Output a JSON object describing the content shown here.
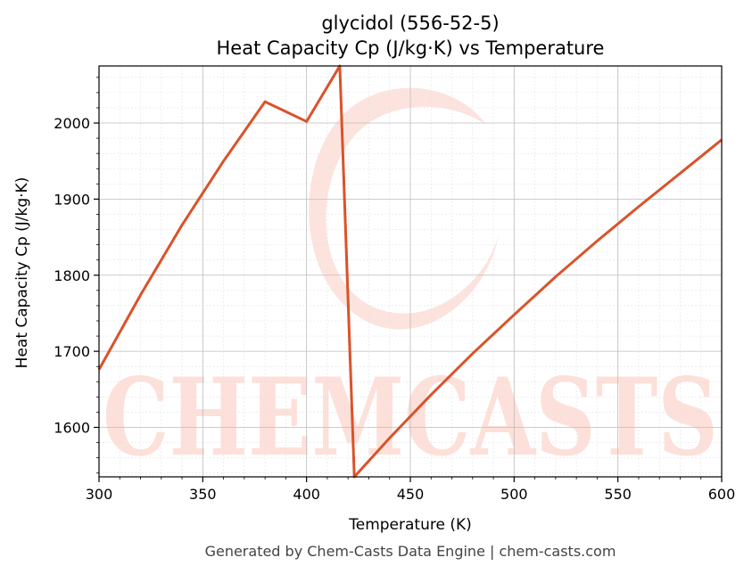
{
  "chart_data": {
    "type": "line",
    "title": "glycidol (556-52-5)",
    "subtitle": "Heat Capacity Cp (J/kg·K) vs Temperature",
    "xlabel": "Temperature (K)",
    "ylabel": "Heat Capacity Cp (J/kg·K)",
    "xlim": [
      300,
      600
    ],
    "ylim": [
      1535,
      2075
    ],
    "xticks": [
      300,
      350,
      400,
      450,
      500,
      550,
      600
    ],
    "yticks": [
      1600,
      1700,
      1800,
      1900,
      2000
    ],
    "grid": true,
    "series": [
      {
        "color": "#d9532a",
        "x": [
          300,
          320,
          340,
          360,
          380,
          400,
          416,
          423,
          440,
          460,
          480,
          500,
          520,
          540,
          560,
          580,
          600
        ],
        "y": [
          1676,
          1774,
          1866,
          1950,
          2028,
          2002,
          2075,
          1535,
          1586,
          1643,
          1697,
          1748,
          1798,
          1845,
          1890,
          1934,
          1978
        ]
      }
    ]
  },
  "watermark": {
    "text": "CHEMCASTS"
  },
  "footer": "Generated by Chem-Casts Data Engine | chem-casts.com"
}
